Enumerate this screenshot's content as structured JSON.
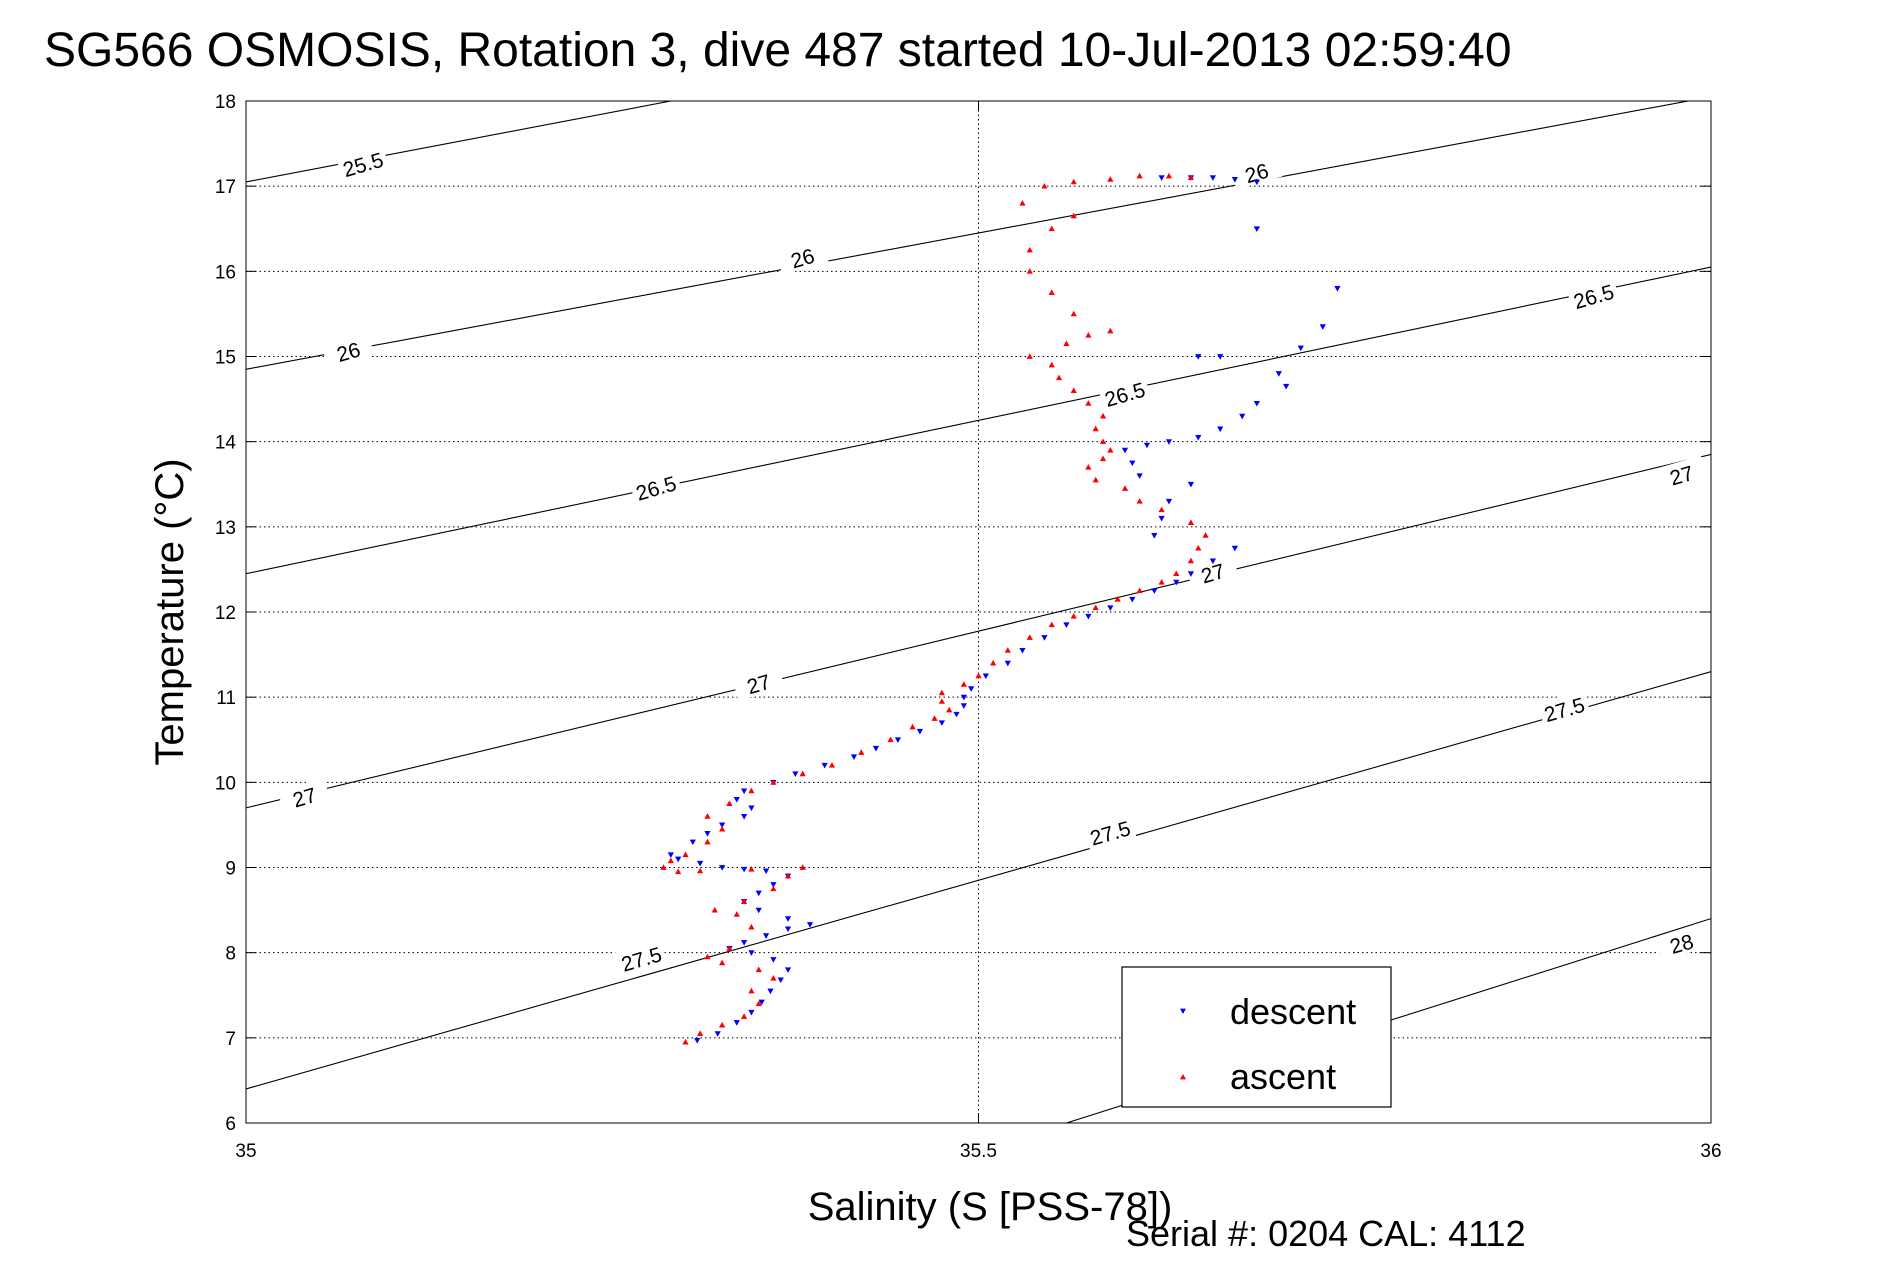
{
  "chart_data": {
    "type": "scatter",
    "title": "SG566 OSMOSIS, Rotation 3, dive 487 started 10-Jul-2013 02:59:40",
    "xlabel": "Salinity (S [PSS-78])",
    "ylabel": "Temperature (°C)",
    "xlim": [
      35,
      36
    ],
    "ylim": [
      6,
      18
    ],
    "xticks": [
      35,
      35.5,
      36
    ],
    "xtick_labels": [
      "35",
      "35.5",
      "36"
    ],
    "yticks": [
      6,
      7,
      8,
      9,
      10,
      11,
      12,
      13,
      14,
      15,
      16,
      17,
      18
    ],
    "ytick_labels": [
      "6",
      "7",
      "8",
      "9",
      "10",
      "11",
      "12",
      "13",
      "14",
      "15",
      "16",
      "17",
      "18"
    ],
    "grid": true,
    "legend_position": "bottom-right",
    "contour_lines": [
      {
        "level": "25.5",
        "points": [
          [
            35.0,
            17.05
          ],
          [
            35.29,
            18.0
          ]
        ]
      },
      {
        "level": "26",
        "points": [
          [
            35.0,
            14.85
          ],
          [
            36.0,
            18.05
          ]
        ]
      },
      {
        "level": "26.5",
        "points": [
          [
            35.0,
            12.45
          ],
          [
            36.0,
            16.05
          ]
        ]
      },
      {
        "level": "27",
        "points": [
          [
            35.0,
            9.7
          ],
          [
            36.0,
            13.85
          ]
        ]
      },
      {
        "level": "27.5",
        "points": [
          [
            35.0,
            6.4
          ],
          [
            36.0,
            11.3
          ]
        ]
      },
      {
        "level": "28",
        "points": [
          [
            35.56,
            6.0
          ],
          [
            36.0,
            8.4
          ]
        ]
      }
    ],
    "contour_labels": [
      {
        "text": "25.5",
        "x": 35.08,
        "y": 17.25
      },
      {
        "text": "26",
        "x": 35.38,
        "y": 16.15
      },
      {
        "text": "26",
        "x": 35.07,
        "y": 15.05
      },
      {
        "text": "26",
        "x": 35.69,
        "y": 17.15
      },
      {
        "text": "26.5",
        "x": 35.28,
        "y": 13.45
      },
      {
        "text": "26.5",
        "x": 35.6,
        "y": 14.55
      },
      {
        "text": "26.5",
        "x": 35.92,
        "y": 15.7
      },
      {
        "text": "27",
        "x": 35.35,
        "y": 11.15
      },
      {
        "text": "27",
        "x": 35.04,
        "y": 9.82
      },
      {
        "text": "27",
        "x": 35.66,
        "y": 12.45
      },
      {
        "text": "27",
        "x": 35.98,
        "y": 13.6
      },
      {
        "text": "27.5",
        "x": 35.27,
        "y": 7.92
      },
      {
        "text": "27.5",
        "x": 35.59,
        "y": 9.4
      },
      {
        "text": "27.5",
        "x": 35.9,
        "y": 10.85
      },
      {
        "text": "28",
        "x": 35.98,
        "y": 8.1
      }
    ],
    "series": [
      {
        "name": "descent",
        "color": "#0000ff",
        "marker": "triangle-down",
        "points": [
          [
            35.308,
            6.97
          ],
          [
            35.322,
            7.05
          ],
          [
            35.335,
            7.18
          ],
          [
            35.345,
            7.3
          ],
          [
            35.352,
            7.42
          ],
          [
            35.358,
            7.55
          ],
          [
            35.365,
            7.68
          ],
          [
            35.37,
            7.8
          ],
          [
            35.36,
            7.92
          ],
          [
            35.345,
            8.0
          ],
          [
            35.33,
            8.05
          ],
          [
            35.34,
            8.12
          ],
          [
            35.355,
            8.2
          ],
          [
            35.37,
            8.28
          ],
          [
            35.385,
            8.33
          ],
          [
            35.37,
            8.4
          ],
          [
            35.35,
            8.5
          ],
          [
            35.34,
            8.6
          ],
          [
            35.35,
            8.7
          ],
          [
            35.36,
            8.8
          ],
          [
            35.37,
            8.9
          ],
          [
            35.355,
            8.96
          ],
          [
            35.34,
            8.98
          ],
          [
            35.325,
            9.0
          ],
          [
            35.31,
            9.05
          ],
          [
            35.295,
            9.1
          ],
          [
            35.29,
            9.15
          ],
          [
            35.305,
            9.3
          ],
          [
            35.315,
            9.4
          ],
          [
            35.325,
            9.5
          ],
          [
            35.34,
            9.6
          ],
          [
            35.345,
            9.7
          ],
          [
            35.335,
            9.8
          ],
          [
            35.34,
            9.9
          ],
          [
            35.36,
            10.0
          ],
          [
            35.375,
            10.1
          ],
          [
            35.395,
            10.2
          ],
          [
            35.415,
            10.3
          ],
          [
            35.43,
            10.4
          ],
          [
            35.445,
            10.5
          ],
          [
            35.46,
            10.6
          ],
          [
            35.475,
            10.7
          ],
          [
            35.485,
            10.8
          ],
          [
            35.49,
            10.9
          ],
          [
            35.49,
            11.0
          ],
          [
            35.495,
            11.1
          ],
          [
            35.505,
            11.25
          ],
          [
            35.52,
            11.4
          ],
          [
            35.53,
            11.55
          ],
          [
            35.545,
            11.7
          ],
          [
            35.56,
            11.85
          ],
          [
            35.575,
            11.95
          ],
          [
            35.59,
            12.05
          ],
          [
            35.605,
            12.15
          ],
          [
            35.62,
            12.25
          ],
          [
            35.635,
            12.35
          ],
          [
            35.645,
            12.45
          ],
          [
            35.66,
            12.6
          ],
          [
            35.675,
            12.75
          ],
          [
            35.62,
            12.9
          ],
          [
            35.625,
            13.1
          ],
          [
            35.63,
            13.3
          ],
          [
            35.645,
            13.5
          ],
          [
            35.61,
            13.6
          ],
          [
            35.605,
            13.75
          ],
          [
            35.6,
            13.9
          ],
          [
            35.615,
            13.96
          ],
          [
            35.63,
            14.0
          ],
          [
            35.65,
            14.05
          ],
          [
            35.665,
            14.15
          ],
          [
            35.68,
            14.3
          ],
          [
            35.69,
            14.45
          ],
          [
            35.71,
            14.65
          ],
          [
            35.705,
            14.8
          ],
          [
            35.65,
            15.0
          ],
          [
            35.665,
            15.0
          ],
          [
            35.72,
            15.1
          ],
          [
            35.735,
            15.35
          ],
          [
            35.745,
            15.8
          ],
          [
            35.69,
            16.5
          ],
          [
            35.69,
            17.05
          ],
          [
            35.675,
            17.08
          ],
          [
            35.66,
            17.1
          ],
          [
            35.645,
            17.1
          ],
          [
            35.625,
            17.1
          ]
        ]
      },
      {
        "name": "ascent",
        "color": "#ff0000",
        "marker": "triangle-up",
        "points": [
          [
            35.3,
            6.95
          ],
          [
            35.31,
            7.05
          ],
          [
            35.325,
            7.15
          ],
          [
            35.34,
            7.25
          ],
          [
            35.35,
            7.4
          ],
          [
            35.345,
            7.55
          ],
          [
            35.36,
            7.7
          ],
          [
            35.35,
            7.8
          ],
          [
            35.325,
            7.88
          ],
          [
            35.315,
            7.95
          ],
          [
            35.33,
            8.05
          ],
          [
            35.345,
            8.3
          ],
          [
            35.335,
            8.45
          ],
          [
            35.32,
            8.5
          ],
          [
            35.34,
            8.6
          ],
          [
            35.36,
            8.75
          ],
          [
            35.37,
            8.9
          ],
          [
            35.38,
            9.0
          ],
          [
            35.345,
            8.98
          ],
          [
            35.31,
            8.96
          ],
          [
            35.295,
            8.95
          ],
          [
            35.285,
            9.0
          ],
          [
            35.29,
            9.08
          ],
          [
            35.3,
            9.15
          ],
          [
            35.315,
            9.3
          ],
          [
            35.325,
            9.45
          ],
          [
            35.315,
            9.6
          ],
          [
            35.33,
            9.75
          ],
          [
            35.345,
            9.9
          ],
          [
            35.36,
            10.0
          ],
          [
            35.38,
            10.1
          ],
          [
            35.4,
            10.2
          ],
          [
            35.42,
            10.35
          ],
          [
            35.44,
            10.5
          ],
          [
            35.455,
            10.65
          ],
          [
            35.47,
            10.75
          ],
          [
            35.48,
            10.85
          ],
          [
            35.475,
            10.95
          ],
          [
            35.475,
            11.05
          ],
          [
            35.49,
            11.15
          ],
          [
            35.5,
            11.25
          ],
          [
            35.51,
            11.4
          ],
          [
            35.52,
            11.55
          ],
          [
            35.535,
            11.7
          ],
          [
            35.55,
            11.85
          ],
          [
            35.565,
            11.95
          ],
          [
            35.58,
            12.05
          ],
          [
            35.595,
            12.15
          ],
          [
            35.61,
            12.25
          ],
          [
            35.625,
            12.35
          ],
          [
            35.635,
            12.45
          ],
          [
            35.645,
            12.6
          ],
          [
            35.65,
            12.75
          ],
          [
            35.655,
            12.9
          ],
          [
            35.645,
            13.05
          ],
          [
            35.625,
            13.2
          ],
          [
            35.61,
            13.3
          ],
          [
            35.6,
            13.45
          ],
          [
            35.58,
            13.55
          ],
          [
            35.575,
            13.7
          ],
          [
            35.585,
            13.8
          ],
          [
            35.59,
            13.9
          ],
          [
            35.585,
            14.0
          ],
          [
            35.58,
            14.15
          ],
          [
            35.585,
            14.3
          ],
          [
            35.575,
            14.45
          ],
          [
            35.565,
            14.6
          ],
          [
            35.555,
            14.75
          ],
          [
            35.55,
            14.9
          ],
          [
            35.535,
            15.0
          ],
          [
            35.56,
            15.15
          ],
          [
            35.575,
            15.25
          ],
          [
            35.59,
            15.3
          ],
          [
            35.565,
            15.5
          ],
          [
            35.55,
            15.75
          ],
          [
            35.535,
            16.0
          ],
          [
            35.535,
            16.25
          ],
          [
            35.55,
            16.5
          ],
          [
            35.565,
            16.65
          ],
          [
            35.53,
            16.8
          ],
          [
            35.545,
            17.0
          ],
          [
            35.565,
            17.05
          ],
          [
            35.59,
            17.08
          ],
          [
            35.61,
            17.12
          ],
          [
            35.63,
            17.12
          ],
          [
            35.645,
            17.1
          ]
        ]
      }
    ]
  },
  "footer": {
    "serial_text": "Serial #: 0204  CAL: 4112"
  }
}
